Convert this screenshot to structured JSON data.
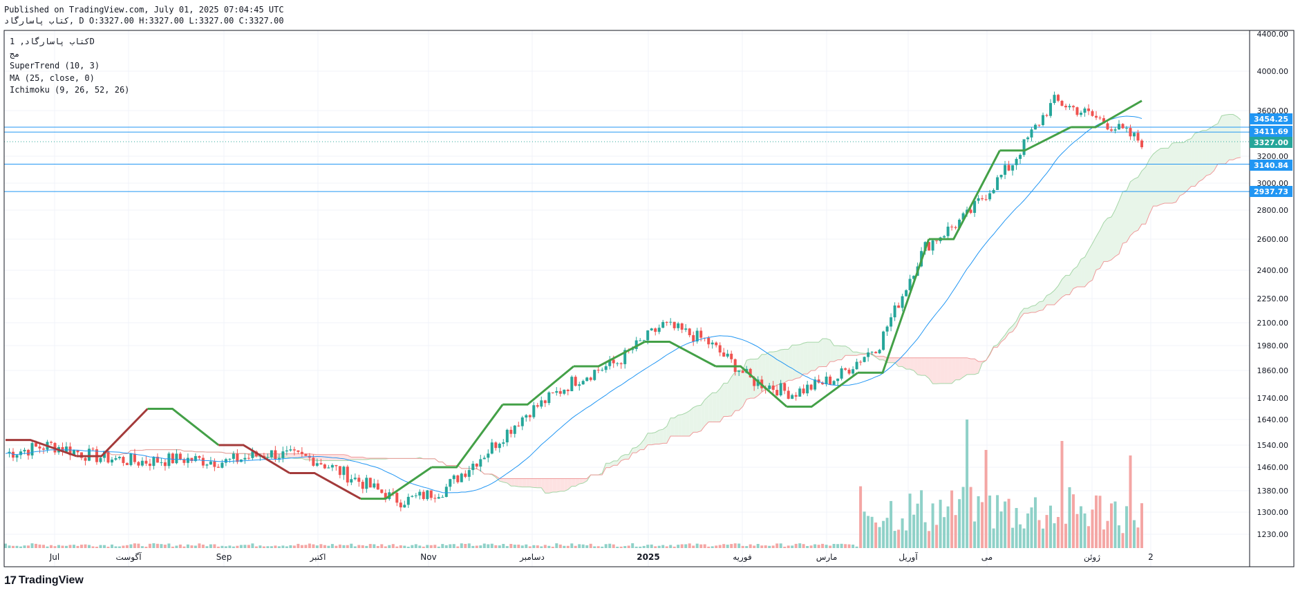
{
  "header": {
    "published": "Published on TradingView.com, July 01, 2025 07:04:45 UTC",
    "ohlc_line": "كتاب  پاسارگاد, D O:3327.00 H:3327.00 L:3327.00 C:3327.00"
  },
  "legend": {
    "symbol": "كتاب پاسارگاد, 1D",
    "exchange": "مج",
    "supertrend": "SuperTrend (10, 3)",
    "ma": "MA (25, close, 0)",
    "ichimoku": "Ichimoku (9, 26, 52, 26)"
  },
  "footer": {
    "brand": "TradingView",
    "logo_mark": "17"
  },
  "colors": {
    "up": "#26a69a",
    "down": "#ef5350",
    "supertrend_up": "#43a047",
    "supertrend_down": "#a33a3a",
    "ma": "#2196f3",
    "hline": "#2196f3",
    "cloud_bull": "#e8f5e9",
    "cloud_bear": "#fde2e2",
    "span_a": "#a5d6a7",
    "span_b": "#ef9a9a",
    "last_price": "#26a69a"
  },
  "chart_data": {
    "type": "candlestick",
    "timeframe": "1D",
    "y_scale": "log",
    "ylim": [
      1180,
      4450
    ],
    "y_ticks": [
      "4400.00",
      "4000.00",
      "3600.00",
      "3200.00",
      "3000.00",
      "2800.00",
      "2600.00",
      "2400.00",
      "2250.00",
      "2100.00",
      "1980.00",
      "1860.00",
      "1740.00",
      "1640.00",
      "1540.00",
      "1460.00",
      "1380.00",
      "1300.00",
      "1230.00"
    ],
    "x_ticks": [
      "Jul",
      "آگوست",
      "Sep",
      "اکتبر",
      "Nov",
      "دسامبر",
      "2025",
      "فوریه",
      "مارس",
      "آوریل",
      "می",
      "ژوئن",
      "2"
    ],
    "horizontal_lines": [
      3454.25,
      3411.69,
      3140.84,
      2937.73
    ],
    "price_badges": [
      "3454.25",
      "3411.69",
      "3327.00",
      "3140.84",
      "2937.73"
    ],
    "last_price": 3327.0,
    "ohlc": {
      "open": 3327.0,
      "high": 3327.0,
      "low": 3327.0,
      "close": 3327.0
    },
    "price_path": [
      [
        "Jul",
        1510
      ],
      [
        "Jul",
        1540
      ],
      [
        "آگوست",
        1500
      ],
      [
        "آگوست",
        1480
      ],
      [
        "Sep",
        1490
      ],
      [
        "Sep",
        1480
      ],
      [
        "اکتبر",
        1510
      ],
      [
        "اکتبر",
        1490
      ],
      [
        "Nov",
        1420
      ],
      [
        "Nov",
        1340
      ],
      [
        "Nov",
        1380
      ],
      [
        "دسامبر",
        1520
      ],
      [
        "دسامبر",
        1680
      ],
      [
        "دسامبر",
        1820
      ],
      [
        "2025",
        1900
      ],
      [
        "2025",
        2090
      ],
      [
        "فوریه",
        2010
      ],
      [
        "فوریه",
        1820
      ],
      [
        "مارس",
        1760
      ],
      [
        "مارس",
        1830
      ],
      [
        "آوریل",
        1990
      ],
      [
        "آوریل",
        2550
      ],
      [
        "می",
        2760
      ],
      [
        "می",
        3150
      ],
      [
        "ژوئن",
        3700
      ],
      [
        "ژوئن",
        3520
      ],
      [
        "2",
        3327
      ]
    ],
    "supertrend_levels": [
      1560,
      1500,
      1690,
      1540,
      1440,
      1350,
      1460,
      1710,
      1880,
      2000,
      1880,
      1700,
      1850,
      2600,
      3250,
      3454.25,
      3700
    ]
  }
}
